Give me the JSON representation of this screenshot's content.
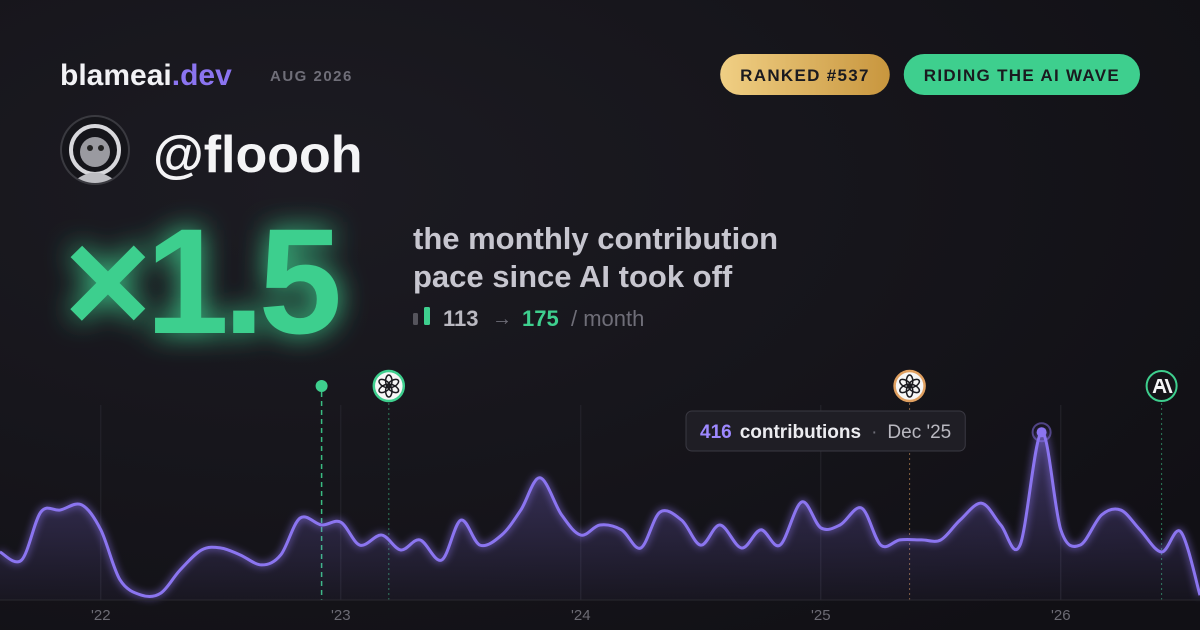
{
  "header": {
    "brand": "blameai",
    "brand_suffix": ".dev",
    "date": "AUG 2026",
    "badges": [
      {
        "text": "RANKED #537",
        "color": "#e3b866"
      },
      {
        "text": "RIDING THE AI WAVE",
        "color": "#3ecf8e"
      }
    ]
  },
  "profile": {
    "handle": "@floooh"
  },
  "headline": {
    "multiplier": "×1.5",
    "description": [
      "the monthly contribution",
      "pace since AI took off"
    ],
    "before": 113,
    "arrow": "→",
    "after": 175,
    "unit": "/ month"
  },
  "chart_data": {
    "type": "area",
    "color": "#8b74f0",
    "x": [
      2021.58,
      2021.67,
      2021.75,
      2021.83,
      2021.92,
      2022.0,
      2022.08,
      2022.17,
      2022.25,
      2022.33,
      2022.42,
      2022.5,
      2022.58,
      2022.67,
      2022.75,
      2022.83,
      2022.92,
      2023.0,
      2023.08,
      2023.17,
      2023.25,
      2023.33,
      2023.42,
      2023.5,
      2023.58,
      2023.67,
      2023.75,
      2023.83,
      2023.92,
      2024.0,
      2024.08,
      2024.17,
      2024.25,
      2024.33,
      2024.42,
      2024.5,
      2024.58,
      2024.67,
      2024.75,
      2024.83,
      2024.92,
      2025.0,
      2025.08,
      2025.17,
      2025.25,
      2025.33,
      2025.42,
      2025.5,
      2025.58,
      2025.67,
      2025.75,
      2025.83,
      2025.92,
      2026.0,
      2026.08,
      2026.17,
      2026.25,
      2026.33,
      2026.42,
      2026.5,
      2026.58
    ],
    "values": [
      119,
      99,
      218,
      223,
      236,
      174,
      50,
      12,
      17,
      74,
      124,
      129,
      112,
      87,
      112,
      203,
      186,
      193,
      136,
      161,
      124,
      149,
      99,
      198,
      136,
      161,
      223,
      303,
      211,
      161,
      186,
      174,
      129,
      218,
      198,
      136,
      186,
      129,
      174,
      136,
      243,
      179,
      186,
      228,
      136,
      149,
      149,
      149,
      198,
      240,
      186,
      136,
      416,
      174,
      136,
      211,
      223,
      174,
      119,
      169,
      12
    ],
    "xlim": [
      2021.58,
      2026.58
    ],
    "ylim": [
      0,
      600
    ],
    "xticks": [
      {
        "value": 2022,
        "label": "'22"
      },
      {
        "value": 2023,
        "label": "'23"
      },
      {
        "value": 2024,
        "label": "'24"
      },
      {
        "value": 2025,
        "label": "'25"
      },
      {
        "value": 2026,
        "label": "'26"
      }
    ],
    "grid": true,
    "events": [
      {
        "x": 2022.92,
        "icon": "dot",
        "color": "#3ecf8e"
      },
      {
        "x": 2023.2,
        "icon": "openai",
        "color": "#3ecf8e"
      },
      {
        "x": 2025.37,
        "icon": "openai",
        "color": "#e0a060"
      },
      {
        "x": 2026.42,
        "icon": "anthropic",
        "color": "#3ecf8e"
      }
    ],
    "tooltip": {
      "x": 2025.92,
      "value": 416,
      "label": "contributions",
      "separator": "·",
      "date": "Dec '25"
    }
  }
}
